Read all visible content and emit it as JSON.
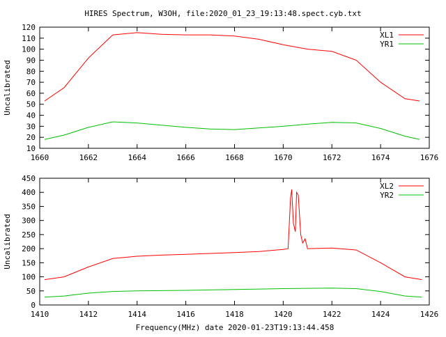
{
  "chart_data": [
    {
      "type": "line",
      "title": "HIRES Spectrum, W3OH, file:2020_01_23_19:13:48.spect.cyb.txt",
      "xlabel": "",
      "ylabel": "Uncalibrated",
      "xlim": [
        1660,
        1676
      ],
      "ylim": [
        10,
        120
      ],
      "xticks": [
        1660,
        1662,
        1664,
        1666,
        1668,
        1670,
        1672,
        1674,
        1676
      ],
      "yticks": [
        10,
        20,
        30,
        40,
        50,
        60,
        70,
        80,
        90,
        100,
        110,
        120
      ],
      "legend": "top-right",
      "grid": false,
      "series": [
        {
          "name": "XL1",
          "color": "#ff0000",
          "x": [
            1660.2,
            1661,
            1662,
            1663,
            1664,
            1665,
            1666,
            1667,
            1668,
            1669,
            1670,
            1671,
            1672,
            1673,
            1674,
            1675,
            1675.6
          ],
          "y": [
            53,
            65,
            92,
            113,
            115,
            113.5,
            113,
            113,
            112,
            109,
            104,
            100,
            98,
            90,
            70,
            55,
            53
          ]
        },
        {
          "name": "YR1",
          "color": "#00c000",
          "x": [
            1660.2,
            1661,
            1662,
            1663,
            1664,
            1665,
            1666,
            1667,
            1668,
            1669,
            1670,
            1671,
            1672,
            1673,
            1674,
            1675,
            1675.6
          ],
          "y": [
            18,
            22,
            29,
            34,
            33,
            31,
            29,
            27.5,
            27,
            28.5,
            30,
            32,
            33.5,
            33,
            28,
            21,
            18
          ]
        }
      ]
    },
    {
      "type": "line",
      "title": "",
      "xlabel": "Frequency(MHz) date 2020-01-23T19:13:44.458",
      "ylabel": "Uncalibrated",
      "xlim": [
        1410,
        1426
      ],
      "ylim": [
        0,
        450
      ],
      "xticks": [
        1410,
        1412,
        1414,
        1416,
        1418,
        1420,
        1422,
        1424,
        1426
      ],
      "yticks": [
        0,
        50,
        100,
        150,
        200,
        250,
        300,
        350,
        400,
        450
      ],
      "legend": "top-right",
      "grid": false,
      "series": [
        {
          "name": "XL2",
          "color": "#ff0000",
          "x": [
            1410.2,
            1411,
            1412,
            1413,
            1414,
            1415,
            1416,
            1417,
            1418,
            1419,
            1420,
            1420.2,
            1420.3,
            1420.35,
            1420.42,
            1420.5,
            1420.55,
            1420.62,
            1420.72,
            1420.8,
            1420.9,
            1421,
            1422,
            1423,
            1424,
            1425,
            1425.7
          ],
          "y": [
            90,
            100,
            135,
            165,
            173,
            177,
            180,
            183,
            186,
            190,
            197,
            200,
            380,
            410,
            290,
            260,
            400,
            390,
            250,
            220,
            235,
            200,
            202,
            195,
            150,
            100,
            90
          ]
        },
        {
          "name": "YR2",
          "color": "#00c000",
          "x": [
            1410.2,
            1411,
            1412,
            1413,
            1414,
            1416,
            1418,
            1420,
            1422,
            1423,
            1424,
            1425,
            1425.7
          ],
          "y": [
            28,
            32,
            42,
            48,
            50,
            52,
            55,
            58,
            60,
            58,
            48,
            32,
            28
          ]
        }
      ]
    }
  ]
}
